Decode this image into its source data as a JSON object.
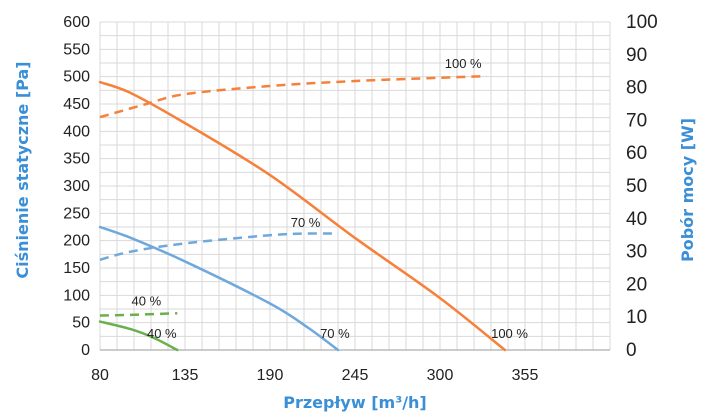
{
  "chart_data": {
    "type": "line",
    "xlabel": "Przepływ [m³/h]",
    "ylabel": "Ciśnienie statyczne [Pa]",
    "y2label": "Pobór mocy [W]",
    "xlim": [
      80,
      410
    ],
    "ylim": [
      0,
      600
    ],
    "y2lim": [
      0,
      100
    ],
    "x_ticks": [
      80,
      135,
      190,
      245,
      300,
      355
    ],
    "y_ticks": [
      0,
      50,
      100,
      150,
      200,
      250,
      300,
      350,
      400,
      450,
      500,
      550,
      600
    ],
    "y2_ticks": [
      0,
      10,
      20,
      30,
      40,
      50,
      60,
      70,
      80,
      90,
      100
    ],
    "grid": true,
    "colors": {
      "orange": "#f5813a",
      "blue": "#6fa8dc",
      "green": "#6ab04c",
      "grid": "#d9d9d9"
    },
    "series": [
      {
        "axis": "left",
        "style": "solid",
        "color": "#f5813a",
        "label": "100 %",
        "points": [
          [
            80,
            490
          ],
          [
            100,
            470
          ],
          [
            135,
            415
          ],
          [
            190,
            320
          ],
          [
            245,
            205
          ],
          [
            300,
            95
          ],
          [
            342,
            0
          ]
        ]
      },
      {
        "axis": "right",
        "style": "dashed",
        "color": "#f5813a",
        "label": "100 %",
        "points": [
          [
            80,
            71
          ],
          [
            110,
            75
          ],
          [
            135,
            78
          ],
          [
            190,
            80.5
          ],
          [
            245,
            82
          ],
          [
            300,
            83
          ],
          [
            330,
            83.5
          ]
        ]
      },
      {
        "axis": "left",
        "style": "solid",
        "color": "#6fa8dc",
        "label": "70 %",
        "points": [
          [
            80,
            225
          ],
          [
            100,
            205
          ],
          [
            135,
            162
          ],
          [
            190,
            85
          ],
          [
            215,
            40
          ],
          [
            234,
            0
          ]
        ]
      },
      {
        "axis": "right",
        "style": "dashed",
        "color": "#6fa8dc",
        "label": "70 %",
        "points": [
          [
            80,
            27.5
          ],
          [
            100,
            30
          ],
          [
            135,
            32.5
          ],
          [
            190,
            35
          ],
          [
            215,
            35.5
          ],
          [
            234,
            35.5
          ]
        ]
      },
      {
        "axis": "left",
        "style": "solid",
        "color": "#6ab04c",
        "label": "40 %",
        "points": [
          [
            80,
            52
          ],
          [
            100,
            38
          ],
          [
            115,
            22
          ],
          [
            130,
            0
          ]
        ]
      },
      {
        "axis": "right",
        "style": "dashed",
        "color": "#6ab04c",
        "label": "40 %",
        "points": [
          [
            80,
            10.5
          ],
          [
            105,
            10.8
          ],
          [
            130,
            11.2
          ]
        ]
      }
    ],
    "annotations": [
      {
        "text": "100 %",
        "x": 315,
        "axis": "right",
        "y": 86
      },
      {
        "text": "70 %",
        "x": 213,
        "axis": "right",
        "y": 37.5
      },
      {
        "text": "40 %",
        "x": 110,
        "axis": "right",
        "y": 13.5
      },
      {
        "text": "40 %",
        "x": 120,
        "axis": "left",
        "y": 22
      },
      {
        "text": "70 %",
        "x": 232,
        "axis": "left",
        "y": 22
      },
      {
        "text": "100 %",
        "x": 345,
        "axis": "left",
        "y": 22
      }
    ]
  }
}
